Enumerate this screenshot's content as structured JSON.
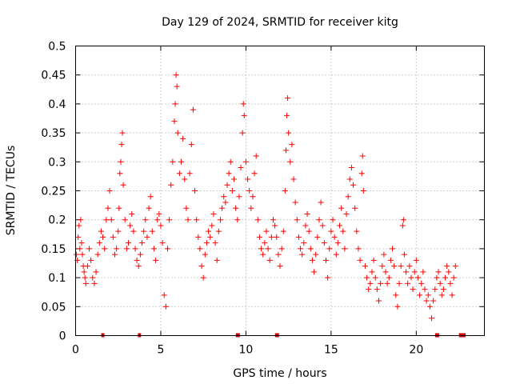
{
  "chart_data": {
    "type": "scatter",
    "title": "Day 129 of 2024, SRMTID for receiver kitg",
    "xlabel": "GPS time / hours",
    "ylabel": "SRMTID / TECUs",
    "xlim": [
      0,
      24
    ],
    "ylim": [
      0,
      0.5
    ],
    "xticks": [
      0,
      5,
      10,
      15,
      20
    ],
    "xtick_labels": [
      "0",
      "5",
      "10",
      "15",
      "20"
    ],
    "yticks": [
      0,
      0.05,
      0.1,
      0.15,
      0.2,
      0.25,
      0.3,
      0.35,
      0.4,
      0.45,
      0.5
    ],
    "ytick_labels": [
      "0",
      "0.05",
      "0.1",
      "0.15",
      "0.2",
      "0.25",
      "0.3",
      "0.35",
      "0.4",
      "0.45",
      "0.5"
    ],
    "grid": true,
    "marker": "+",
    "color": "#ff0000",
    "baseline_markers": {
      "y": 0,
      "x": [
        1.6,
        3.75,
        9.5,
        9.55,
        11.8,
        11.85,
        21.2,
        21.25,
        22.6,
        22.65,
        22.7,
        22.75,
        22.8
      ]
    },
    "series": [
      {
        "name": "SRMTID",
        "points": [
          [
            0.05,
            0.14
          ],
          [
            0.1,
            0.13
          ],
          [
            0.15,
            0.17
          ],
          [
            0.2,
            0.19
          ],
          [
            0.25,
            0.15
          ],
          [
            0.3,
            0.2
          ],
          [
            0.35,
            0.16
          ],
          [
            0.4,
            0.14
          ],
          [
            0.45,
            0.12
          ],
          [
            0.5,
            0.11
          ],
          [
            0.55,
            0.1
          ],
          [
            0.6,
            0.09
          ],
          [
            0.7,
            0.12
          ],
          [
            0.8,
            0.15
          ],
          [
            0.9,
            0.13
          ],
          [
            1.0,
            0.1
          ],
          [
            1.1,
            0.09
          ],
          [
            1.2,
            0.11
          ],
          [
            1.3,
            0.14
          ],
          [
            1.4,
            0.16
          ],
          [
            1.5,
            0.18
          ],
          [
            1.6,
            0.17
          ],
          [
            1.7,
            0.15
          ],
          [
            1.8,
            0.2
          ],
          [
            1.9,
            0.22
          ],
          [
            2.0,
            0.25
          ],
          [
            2.1,
            0.2
          ],
          [
            2.2,
            0.17
          ],
          [
            2.3,
            0.14
          ],
          [
            2.4,
            0.15
          ],
          [
            2.5,
            0.18
          ],
          [
            2.55,
            0.22
          ],
          [
            2.6,
            0.28
          ],
          [
            2.65,
            0.3
          ],
          [
            2.7,
            0.33
          ],
          [
            2.75,
            0.35
          ],
          [
            2.8,
            0.26
          ],
          [
            2.9,
            0.2
          ],
          [
            3.0,
            0.15
          ],
          [
            3.1,
            0.16
          ],
          [
            3.2,
            0.19
          ],
          [
            3.3,
            0.21
          ],
          [
            3.4,
            0.18
          ],
          [
            3.5,
            0.15
          ],
          [
            3.6,
            0.13
          ],
          [
            3.7,
            0.12
          ],
          [
            3.8,
            0.14
          ],
          [
            3.9,
            0.16
          ],
          [
            4.0,
            0.18
          ],
          [
            4.1,
            0.2
          ],
          [
            4.2,
            0.17
          ],
          [
            4.3,
            0.22
          ],
          [
            4.4,
            0.24
          ],
          [
            4.5,
            0.18
          ],
          [
            4.6,
            0.15
          ],
          [
            4.7,
            0.13
          ],
          [
            4.8,
            0.2
          ],
          [
            4.9,
            0.21
          ],
          [
            5.0,
            0.19
          ],
          [
            5.1,
            0.16
          ],
          [
            5.2,
            0.07
          ],
          [
            5.3,
            0.05
          ],
          [
            5.4,
            0.15
          ],
          [
            5.5,
            0.2
          ],
          [
            5.6,
            0.26
          ],
          [
            5.7,
            0.3
          ],
          [
            5.8,
            0.37
          ],
          [
            5.85,
            0.4
          ],
          [
            5.9,
            0.45
          ],
          [
            5.95,
            0.43
          ],
          [
            6.0,
            0.35
          ],
          [
            6.1,
            0.28
          ],
          [
            6.2,
            0.3
          ],
          [
            6.3,
            0.34
          ],
          [
            6.4,
            0.27
          ],
          [
            6.5,
            0.22
          ],
          [
            6.6,
            0.2
          ],
          [
            6.7,
            0.28
          ],
          [
            6.8,
            0.33
          ],
          [
            6.9,
            0.39
          ],
          [
            7.0,
            0.25
          ],
          [
            7.1,
            0.2
          ],
          [
            7.2,
            0.17
          ],
          [
            7.3,
            0.15
          ],
          [
            7.4,
            0.12
          ],
          [
            7.5,
            0.1
          ],
          [
            7.6,
            0.14
          ],
          [
            7.7,
            0.16
          ],
          [
            7.8,
            0.18
          ],
          [
            7.9,
            0.17
          ],
          [
            8.0,
            0.19
          ],
          [
            8.1,
            0.21
          ],
          [
            8.2,
            0.16
          ],
          [
            8.3,
            0.13
          ],
          [
            8.4,
            0.18
          ],
          [
            8.5,
            0.2
          ],
          [
            8.6,
            0.22
          ],
          [
            8.7,
            0.24
          ],
          [
            8.8,
            0.23
          ],
          [
            8.9,
            0.26
          ],
          [
            9.0,
            0.28
          ],
          [
            9.1,
            0.3
          ],
          [
            9.2,
            0.25
          ],
          [
            9.3,
            0.27
          ],
          [
            9.4,
            0.22
          ],
          [
            9.5,
            0.2
          ],
          [
            9.6,
            0.24
          ],
          [
            9.7,
            0.29
          ],
          [
            9.8,
            0.35
          ],
          [
            9.85,
            0.4
          ],
          [
            9.9,
            0.38
          ],
          [
            10.0,
            0.3
          ],
          [
            10.1,
            0.27
          ],
          [
            10.2,
            0.25
          ],
          [
            10.3,
            0.22
          ],
          [
            10.4,
            0.24
          ],
          [
            10.5,
            0.28
          ],
          [
            10.6,
            0.31
          ],
          [
            10.7,
            0.2
          ],
          [
            10.8,
            0.17
          ],
          [
            10.9,
            0.15
          ],
          [
            11.0,
            0.14
          ],
          [
            11.1,
            0.16
          ],
          [
            11.2,
            0.18
          ],
          [
            11.3,
            0.15
          ],
          [
            11.4,
            0.13
          ],
          [
            11.5,
            0.17
          ],
          [
            11.6,
            0.2
          ],
          [
            11.7,
            0.19
          ],
          [
            11.8,
            0.17
          ],
          [
            11.9,
            0.14
          ],
          [
            12.0,
            0.12
          ],
          [
            12.1,
            0.15
          ],
          [
            12.2,
            0.18
          ],
          [
            12.3,
            0.25
          ],
          [
            12.35,
            0.32
          ],
          [
            12.4,
            0.38
          ],
          [
            12.45,
            0.41
          ],
          [
            12.5,
            0.35
          ],
          [
            12.6,
            0.3
          ],
          [
            12.7,
            0.33
          ],
          [
            12.8,
            0.27
          ],
          [
            12.9,
            0.23
          ],
          [
            13.0,
            0.2
          ],
          [
            13.1,
            0.17
          ],
          [
            13.2,
            0.15
          ],
          [
            13.3,
            0.14
          ],
          [
            13.4,
            0.16
          ],
          [
            13.5,
            0.19
          ],
          [
            13.6,
            0.21
          ],
          [
            13.7,
            0.18
          ],
          [
            13.8,
            0.15
          ],
          [
            13.9,
            0.13
          ],
          [
            14.0,
            0.11
          ],
          [
            14.1,
            0.14
          ],
          [
            14.2,
            0.17
          ],
          [
            14.3,
            0.2
          ],
          [
            14.4,
            0.23
          ],
          [
            14.5,
            0.19
          ],
          [
            14.6,
            0.16
          ],
          [
            14.7,
            0.13
          ],
          [
            14.8,
            0.1
          ],
          [
            14.9,
            0.15
          ],
          [
            15.0,
            0.18
          ],
          [
            15.1,
            0.2
          ],
          [
            15.2,
            0.17
          ],
          [
            15.3,
            0.14
          ],
          [
            15.4,
            0.16
          ],
          [
            15.5,
            0.19
          ],
          [
            15.6,
            0.22
          ],
          [
            15.7,
            0.18
          ],
          [
            15.8,
            0.15
          ],
          [
            15.9,
            0.21
          ],
          [
            16.0,
            0.24
          ],
          [
            16.1,
            0.27
          ],
          [
            16.2,
            0.29
          ],
          [
            16.3,
            0.26
          ],
          [
            16.4,
            0.22
          ],
          [
            16.5,
            0.18
          ],
          [
            16.6,
            0.15
          ],
          [
            16.7,
            0.13
          ],
          [
            16.8,
            0.28
          ],
          [
            16.85,
            0.31
          ],
          [
            16.9,
            0.25
          ],
          [
            17.0,
            0.12
          ],
          [
            17.1,
            0.1
          ],
          [
            17.2,
            0.08
          ],
          [
            17.3,
            0.09
          ],
          [
            17.4,
            0.11
          ],
          [
            17.5,
            0.13
          ],
          [
            17.6,
            0.1
          ],
          [
            17.7,
            0.08
          ],
          [
            17.8,
            0.06
          ],
          [
            17.9,
            0.09
          ],
          [
            18.0,
            0.12
          ],
          [
            18.1,
            0.14
          ],
          [
            18.2,
            0.11
          ],
          [
            18.3,
            0.09
          ],
          [
            18.4,
            0.1
          ],
          [
            18.5,
            0.13
          ],
          [
            18.6,
            0.15
          ],
          [
            18.7,
            0.12
          ],
          [
            18.8,
            0.07
          ],
          [
            18.9,
            0.05
          ],
          [
            19.0,
            0.09
          ],
          [
            19.1,
            0.12
          ],
          [
            19.2,
            0.19
          ],
          [
            19.25,
            0.2
          ],
          [
            19.3,
            0.14
          ],
          [
            19.4,
            0.11
          ],
          [
            19.5,
            0.09
          ],
          [
            19.6,
            0.12
          ],
          [
            19.7,
            0.1
          ],
          [
            19.8,
            0.08
          ],
          [
            19.9,
            0.11
          ],
          [
            20.0,
            0.13
          ],
          [
            20.1,
            0.1
          ],
          [
            20.2,
            0.07
          ],
          [
            20.3,
            0.09
          ],
          [
            20.4,
            0.11
          ],
          [
            20.5,
            0.08
          ],
          [
            20.6,
            0.06
          ],
          [
            20.7,
            0.07
          ],
          [
            20.8,
            0.05
          ],
          [
            20.9,
            0.03
          ],
          [
            21.0,
            0.06
          ],
          [
            21.1,
            0.08
          ],
          [
            21.2,
            0.1
          ],
          [
            21.3,
            0.11
          ],
          [
            21.4,
            0.09
          ],
          [
            21.5,
            0.07
          ],
          [
            21.6,
            0.08
          ],
          [
            21.7,
            0.1
          ],
          [
            21.8,
            0.12
          ],
          [
            21.9,
            0.11
          ],
          [
            22.0,
            0.09
          ],
          [
            22.1,
            0.07
          ],
          [
            22.2,
            0.1
          ],
          [
            22.3,
            0.12
          ]
        ]
      }
    ]
  }
}
